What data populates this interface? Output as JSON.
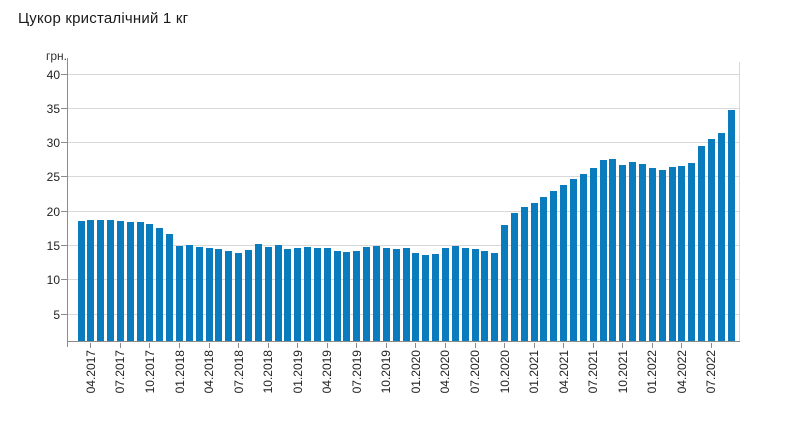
{
  "title": "Цукор кристалічний 1 кг",
  "y_axis_unit": "грн.",
  "colors": {
    "bar": "#0a7cbe",
    "gridline": "#d8d8d8",
    "axis": "#8c8c8c",
    "text": "#222222",
    "title_text": "#1a1a1a",
    "background": "#ffffff"
  },
  "chart_data": {
    "type": "bar",
    "title": "Цукор кристалічний 1 кг",
    "ylabel": "грн.",
    "xlabel": "",
    "grid": true,
    "legend": false,
    "ylim": [
      1,
      42
    ],
    "yticks": [
      5,
      10,
      15,
      20,
      25,
      30,
      35,
      40
    ],
    "x_tick_labels": [
      "04.2017",
      "07.2017",
      "10.2017",
      "01.2018",
      "04.2018",
      "07.2018",
      "10.2018",
      "01.2019",
      "04.2019",
      "07.2019",
      "10.2019",
      "01.2020",
      "04.2020",
      "07.2020",
      "10.2020",
      "01.2021",
      "04.2021",
      "07.2021",
      "10.2021",
      "01.2022",
      "04.2022",
      "07.2022"
    ],
    "x": [
      "03.2017",
      "04.2017",
      "05.2017",
      "06.2017",
      "07.2017",
      "08.2017",
      "09.2017",
      "10.2017",
      "11.2017",
      "12.2017",
      "01.2018",
      "02.2018",
      "03.2018",
      "04.2018",
      "05.2018",
      "06.2018",
      "07.2018",
      "08.2018",
      "09.2018",
      "10.2018",
      "11.2018",
      "12.2018",
      "01.2019",
      "02.2019",
      "03.2019",
      "04.2019",
      "05.2019",
      "06.2019",
      "07.2019",
      "08.2019",
      "09.2019",
      "10.2019",
      "11.2019",
      "12.2019",
      "01.2020",
      "02.2020",
      "03.2020",
      "04.2020",
      "05.2020",
      "06.2020",
      "07.2020",
      "08.2020",
      "09.2020",
      "10.2020",
      "11.2020",
      "12.2020",
      "01.2021",
      "02.2021",
      "03.2021",
      "04.2021",
      "05.2021",
      "06.2021",
      "07.2021",
      "08.2021",
      "09.2021",
      "10.2021",
      "11.2021",
      "12.2021",
      "01.2022",
      "02.2022",
      "03.2022",
      "04.2022",
      "05.2022",
      "06.2022",
      "07.2022",
      "08.2022",
      "09.2022"
    ],
    "values": [
      18.5,
      18.6,
      18.7,
      18.6,
      18.5,
      18.4,
      18.3,
      18.0,
      17.5,
      16.6,
      14.8,
      15.0,
      14.7,
      14.6,
      14.4,
      14.2,
      13.9,
      14.3,
      15.1,
      14.7,
      15.0,
      14.4,
      14.6,
      14.7,
      14.6,
      14.5,
      14.2,
      14.0,
      14.2,
      14.7,
      14.9,
      14.6,
      14.4,
      14.5,
      13.9,
      13.5,
      13.7,
      14.6,
      14.9,
      14.6,
      14.4,
      14.2,
      13.8,
      17.9,
      19.7,
      20.5,
      21.2,
      22.0,
      22.9,
      23.8,
      24.6,
      25.3,
      26.2,
      27.4,
      27.6,
      26.6,
      27.1,
      26.8,
      26.3,
      26.0,
      26.4,
      26.5,
      27.0,
      29.5,
      30.4,
      31.3,
      34.7
    ]
  }
}
